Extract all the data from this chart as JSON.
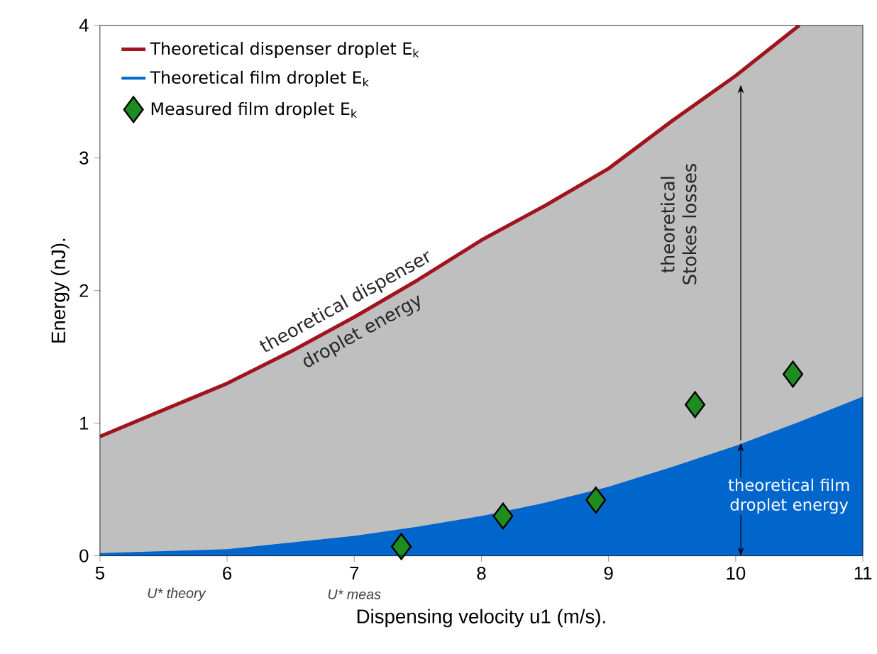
{
  "chart_data": {
    "type": "line",
    "xlabel": "Dispensing velocity u1 (m/s).",
    "ylabel": "Energy (nJ).",
    "xlim": [
      5,
      11
    ],
    "xticks": [
      5,
      6,
      7,
      8,
      9,
      10,
      11
    ],
    "ylim": [
      0,
      4
    ],
    "yticks": [
      0,
      1,
      2,
      3,
      4
    ],
    "legend": "top left",
    "grid": false,
    "bands": [
      {
        "axis": "x",
        "from": 5,
        "to": 11,
        "color": "#bfbfbf"
      }
    ],
    "series": [
      {
        "name": "Theoretical dispenser droplet E$_{k}$",
        "type": "line",
        "color": "#a0141e",
        "x": [
          5,
          5.5,
          6,
          6.5,
          7,
          7.5,
          8,
          8.5,
          9,
          9.5,
          10,
          10.5
        ],
        "values": [
          0.9,
          1.1,
          1.3,
          1.54,
          1.8,
          2.08,
          2.38,
          2.64,
          2.92,
          3.28,
          3.62,
          4.0
        ]
      },
      {
        "name": "Theoretical film droplet E$_{k}$",
        "type": "area",
        "color": "#0066cc",
        "x": [
          5,
          6,
          7,
          7.5,
          8,
          8.5,
          9,
          9.5,
          10,
          10.5,
          11
        ],
        "values": [
          0.02,
          0.05,
          0.15,
          0.22,
          0.3,
          0.4,
          0.52,
          0.67,
          0.83,
          1.01,
          1.2
        ]
      },
      {
        "name": "Measured film droplet E$_{k}$",
        "type": "scatter",
        "marker": "diamond",
        "color": "#1e8c1e",
        "x": [
          7.37,
          8.17,
          8.9,
          9.68,
          10.45
        ],
        "values": [
          0.07,
          0.3,
          0.42,
          1.14,
          1.37
        ]
      }
    ],
    "annotations": [
      "theoretical dispenser droplet energy",
      "theoretical Stokes losses",
      "theoretical film droplet energy",
      "U* theory",
      "U* meas"
    ]
  }
}
